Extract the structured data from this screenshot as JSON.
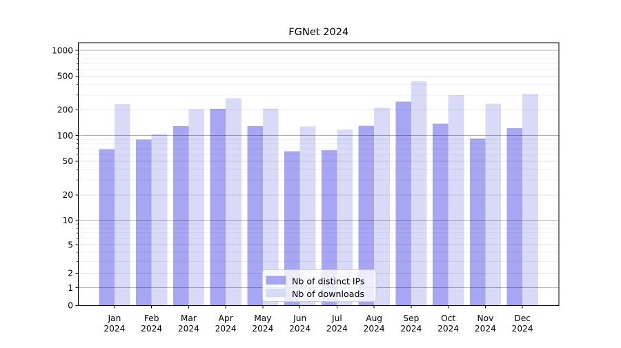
{
  "chart_data": {
    "type": "bar",
    "title": "FGNet 2024",
    "categories": [
      "Jan",
      "Feb",
      "Mar",
      "Apr",
      "May",
      "Jun",
      "Jul",
      "Aug",
      "Sep",
      "Oct",
      "Nov",
      "Dec"
    ],
    "x_tick_year_line": "2024",
    "series": [
      {
        "name": "Nb of distinct IPs",
        "color": "#a6a6f2",
        "values": [
          69,
          90,
          129,
          205,
          129,
          65,
          67,
          130,
          250,
          138,
          92,
          122
        ]
      },
      {
        "name": "Nb of downloads",
        "color": "#d9d9f8",
        "values": [
          235,
          105,
          204,
          274,
          208,
          128,
          118,
          211,
          435,
          298,
          237,
          308
        ]
      }
    ],
    "y_axis": {
      "scale": "asinh",
      "linear_width": 2,
      "tick_values": [
        0,
        1,
        2,
        5,
        10,
        20,
        50,
        100,
        200,
        500,
        1000
      ],
      "decade_ticks": [
        1,
        10,
        100,
        1000
      ],
      "minor_values": [
        3,
        4,
        6,
        7,
        8,
        9,
        30,
        40,
        60,
        70,
        80,
        90,
        300,
        400,
        600,
        700,
        800,
        900
      ],
      "range_top": 1250
    },
    "legend_location": "lower center",
    "grid": "on"
  },
  "colors": {
    "background": "#ffffff",
    "bar_distinct_ips": "#a6a6f2",
    "bar_downloads": "#d9d9f8",
    "grid_decade": "rgba(0,0,0,0.32)",
    "grid_major": "rgba(0,0,0,0.11)",
    "grid_minor": "rgba(0,0,0,0.05)",
    "axis": "#000000",
    "legend_border": "#cccccc",
    "legend_background": "rgba(255,255,255,0.8)"
  }
}
